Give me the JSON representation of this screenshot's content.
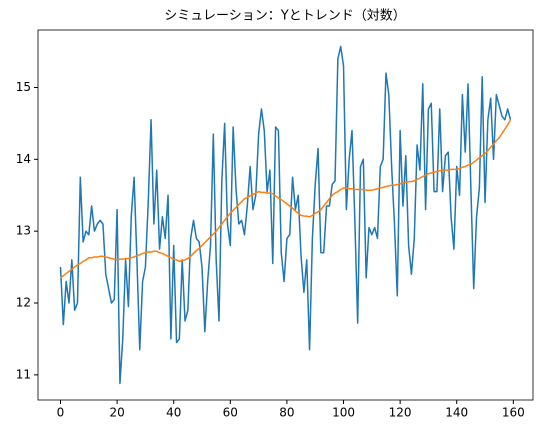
{
  "chart_data": {
    "type": "line",
    "title": "シミュレーション：Yとトレンド（対数）",
    "x": [
      0,
      1,
      2,
      3,
      4,
      5,
      6,
      7,
      8,
      9,
      10,
      11,
      12,
      13,
      14,
      15,
      16,
      17,
      18,
      19,
      20,
      21,
      22,
      23,
      24,
      25,
      26,
      27,
      28,
      29,
      30,
      31,
      32,
      33,
      34,
      35,
      36,
      37,
      38,
      39,
      40,
      41,
      42,
      43,
      44,
      45,
      46,
      47,
      48,
      49,
      50,
      51,
      52,
      53,
      54,
      55,
      56,
      57,
      58,
      59,
      60,
      61,
      62,
      63,
      64,
      65,
      66,
      67,
      68,
      69,
      70,
      71,
      72,
      73,
      74,
      75,
      76,
      77,
      78,
      79,
      80,
      81,
      82,
      83,
      84,
      85,
      86,
      87,
      88,
      89,
      90,
      91,
      92,
      93,
      94,
      95,
      96,
      97,
      98,
      99,
      100,
      101,
      102,
      103,
      104,
      105,
      106,
      107,
      108,
      109,
      110,
      111,
      112,
      113,
      114,
      115,
      116,
      117,
      118,
      119,
      120,
      121,
      122,
      123,
      124,
      125,
      126,
      127,
      128,
      129,
      130,
      131,
      132,
      133,
      134,
      135,
      136,
      137,
      138,
      139,
      140,
      141,
      142,
      143,
      144,
      145,
      146,
      147,
      148,
      149,
      150,
      151,
      152,
      153,
      154,
      155,
      156,
      157,
      158,
      159
    ],
    "series": [
      {
        "color": "#1f77b4",
        "values": [
          12.5,
          11.7,
          12.3,
          12.0,
          12.6,
          11.9,
          12.0,
          13.75,
          12.85,
          13.0,
          12.95,
          13.35,
          13.0,
          13.1,
          13.15,
          13.1,
          12.4,
          12.2,
          12.0,
          12.05,
          13.3,
          10.88,
          11.5,
          12.6,
          11.95,
          13.2,
          13.75,
          12.6,
          11.35,
          12.3,
          12.5,
          13.4,
          14.55,
          13.1,
          13.85,
          12.75,
          13.2,
          12.9,
          13.5,
          11.5,
          12.8,
          11.45,
          11.5,
          12.6,
          11.75,
          11.9,
          12.9,
          13.15,
          12.9,
          12.85,
          12.5,
          11.6,
          12.3,
          12.8,
          14.35,
          12.6,
          11.75,
          13.7,
          14.5,
          13.1,
          12.8,
          14.45,
          13.6,
          13.1,
          13.15,
          12.95,
          13.35,
          13.9,
          13.3,
          13.5,
          14.35,
          14.7,
          14.4,
          13.55,
          13.85,
          12.55,
          14.45,
          14.4,
          12.7,
          12.3,
          12.9,
          12.95,
          13.75,
          13.3,
          13.5,
          12.65,
          12.15,
          12.6,
          11.35,
          12.9,
          13.65,
          14.15,
          12.7,
          12.7,
          13.35,
          13.35,
          13.65,
          13.7,
          15.4,
          15.57,
          15.3,
          13.3,
          14.0,
          14.4,
          13.15,
          11.72,
          13.9,
          14.0,
          12.35,
          13.05,
          12.95,
          13.05,
          12.9,
          13.9,
          14.0,
          15.2,
          14.9,
          13.9,
          13.1,
          12.1,
          14.4,
          13.35,
          14.05,
          12.8,
          12.4,
          12.9,
          14.2,
          13.85,
          15.05,
          13.3,
          14.7,
          14.78,
          13.55,
          13.55,
          14.7,
          13.55,
          14.05,
          14.1,
          13.2,
          12.75,
          13.9,
          13.5,
          14.9,
          14.1,
          15.05,
          13.6,
          12.2,
          13.2,
          13.6,
          15.15,
          13.4,
          14.55,
          14.85,
          14.0,
          14.9,
          14.75,
          14.6,
          14.55,
          14.7,
          14.55
        ]
      },
      {
        "color": "#ff7f0e",
        "values": [
          12.35,
          12.38,
          12.41,
          12.44,
          12.47,
          12.5,
          12.53,
          12.55,
          12.58,
          12.6,
          12.63,
          12.63,
          12.64,
          12.64,
          12.65,
          12.65,
          12.64,
          12.63,
          12.62,
          12.61,
          12.6,
          12.61,
          12.61,
          12.62,
          12.62,
          12.63,
          12.64,
          12.66,
          12.67,
          12.69,
          12.7,
          12.71,
          12.71,
          12.72,
          12.72,
          12.7,
          12.69,
          12.67,
          12.65,
          12.63,
          12.61,
          12.6,
          12.58,
          12.59,
          12.6,
          12.62,
          12.65,
          12.69,
          12.73,
          12.76,
          12.8,
          12.84,
          12.88,
          12.92,
          12.96,
          13.0,
          13.05,
          13.1,
          13.15,
          13.2,
          13.25,
          13.29,
          13.33,
          13.37,
          13.41,
          13.45,
          13.47,
          13.49,
          13.51,
          13.53,
          13.55,
          13.54,
          13.54,
          13.53,
          13.53,
          13.52,
          13.49,
          13.46,
          13.44,
          13.41,
          13.38,
          13.35,
          13.32,
          13.28,
          13.25,
          13.22,
          13.21,
          13.21,
          13.2,
          13.22,
          13.25,
          13.27,
          13.3,
          13.35,
          13.4,
          13.45,
          13.5,
          13.53,
          13.55,
          13.58,
          13.6,
          13.6,
          13.59,
          13.59,
          13.58,
          13.58,
          13.58,
          13.58,
          13.57,
          13.57,
          13.57,
          13.58,
          13.59,
          13.6,
          13.61,
          13.62,
          13.63,
          13.64,
          13.64,
          13.65,
          13.66,
          13.67,
          13.68,
          13.69,
          13.69,
          13.7,
          13.72,
          13.74,
          13.76,
          13.78,
          13.8,
          13.81,
          13.82,
          13.83,
          13.84,
          13.85,
          13.85,
          13.85,
          13.86,
          13.86,
          13.86,
          13.87,
          13.89,
          13.9,
          13.92,
          13.93,
          13.96,
          13.99,
          14.02,
          14.05,
          14.08,
          14.12,
          14.17,
          14.21,
          14.26,
          14.3,
          14.36,
          14.42,
          14.48,
          14.55
        ]
      }
    ],
    "xlim": [
      -7.95,
      166.95
    ],
    "xticks": [
      0,
      20,
      40,
      60,
      80,
      100,
      120,
      140,
      160
    ],
    "ylim": [
      10.65,
      15.8
    ],
    "yticks": [
      11,
      12,
      13,
      14,
      15
    ]
  }
}
